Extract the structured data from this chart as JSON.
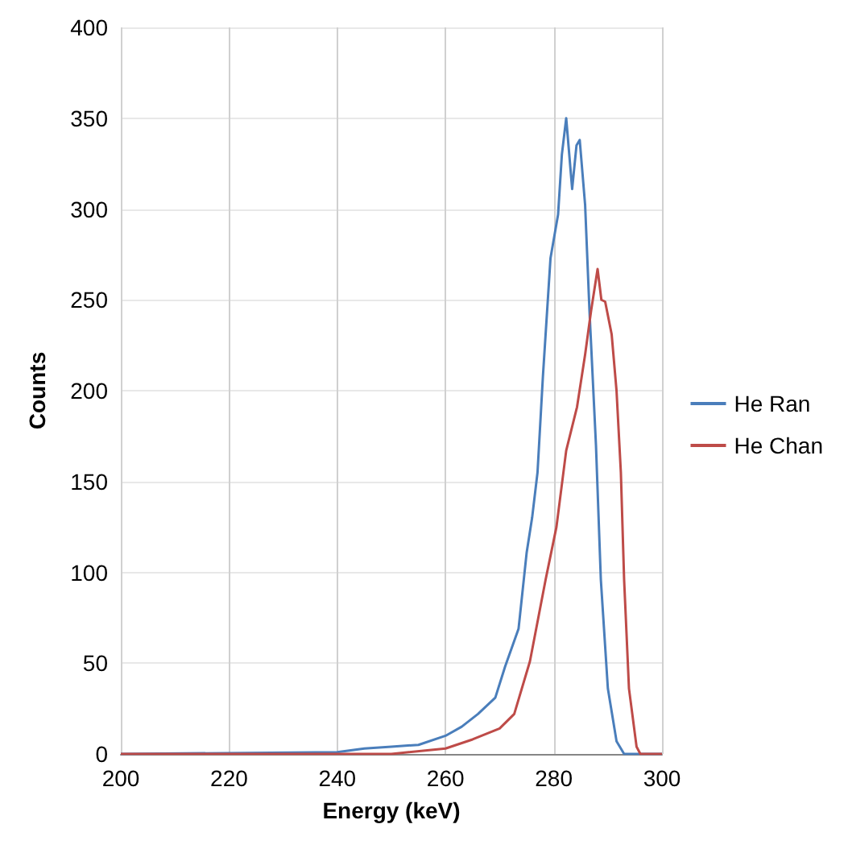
{
  "chart_data": {
    "type": "line",
    "xlabel": "Energy (keV)",
    "ylabel": "Counts",
    "xlim": [
      200,
      300
    ],
    "xticks": [
      200,
      220,
      240,
      260,
      280,
      300
    ],
    "ylim": [
      0,
      400
    ],
    "yticks": [
      0,
      50,
      100,
      150,
      200,
      250,
      300,
      350,
      400
    ],
    "grid": true,
    "legend": "right",
    "marker": "none",
    "line_style": "solid",
    "series": [
      {
        "name": "He Ran",
        "color": "#4a7ebb",
        "x": [
          200,
          240,
          245,
          250,
          255,
          260,
          263,
          266,
          269.2,
          271,
          273.5,
          275,
          276,
          277,
          278,
          279.4,
          280.8,
          281.5,
          282.3,
          283.4,
          284.2,
          284.8,
          285.8,
          286.6,
          287.8,
          288.7,
          290,
          291.6,
          293,
          300
        ],
        "values": [
          0,
          1,
          3,
          4,
          5,
          10,
          15,
          22,
          31,
          48,
          69,
          111,
          130,
          155,
          208,
          273,
          297,
          330,
          350,
          311,
          335,
          338,
          302,
          244,
          170,
          96,
          36,
          7,
          0,
          0
        ]
      },
      {
        "name": "He Chan",
        "color": "#be4b48",
        "x": [
          200,
          250,
          260,
          265,
          270,
          272.7,
          275.6,
          278.5,
          280.5,
          282.3,
          284.3,
          285.8,
          286.9,
          288.1,
          288.8,
          289.5,
          290.7,
          291.6,
          292.4,
          293,
          293.9,
          295.3,
          296,
          300
        ],
        "values": [
          0,
          0,
          3,
          8,
          14,
          22,
          51,
          96,
          125,
          167,
          191,
          220,
          244,
          267,
          250,
          249,
          231,
          200,
          155,
          96,
          36,
          4,
          0,
          0
        ]
      }
    ]
  }
}
